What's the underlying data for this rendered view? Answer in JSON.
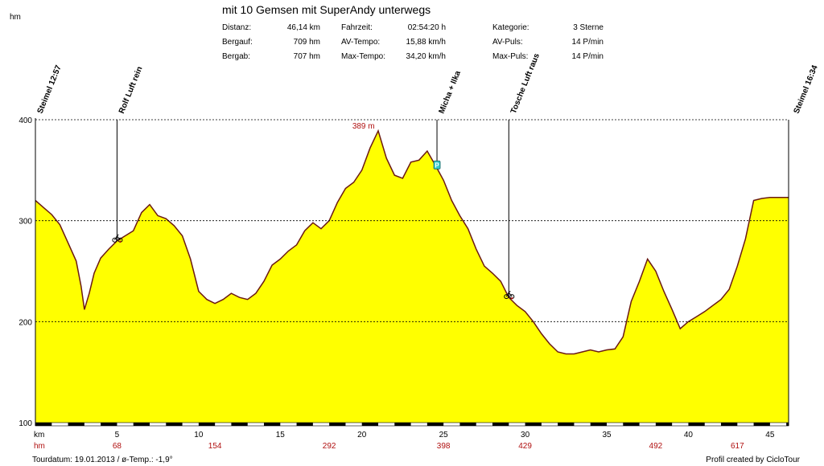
{
  "header": {
    "title": "mit 10 Gemsen mit SuperAndy unterwegs",
    "y_unit": "hm",
    "stats": [
      {
        "label": "Distanz:",
        "value": "46,14 km"
      },
      {
        "label": "Bergauf:",
        "value": "709 hm"
      },
      {
        "label": "Bergab:",
        "value": "707 hm"
      },
      {
        "label": "Fahrzeit:",
        "value": "02:54:20 h"
      },
      {
        "label": "AV-Tempo:",
        "value": "15,88 km/h"
      },
      {
        "label": "Max-Tempo:",
        "value": "34,20 km/h"
      },
      {
        "label": "Kategorie:",
        "value": "3 Sterne"
      },
      {
        "label": "AV-Puls:",
        "value": "14 P/min"
      },
      {
        "label": "Max-Puls:",
        "value": "14 P/min"
      }
    ]
  },
  "footer": {
    "tourdatum": "Tourdatum: 19.01.2013  /  ø-Temp.: -1,9°",
    "credit": "Profil created by CicloTour"
  },
  "colors": {
    "fill": "#ffff00",
    "line": "#6b1a12",
    "accent_red": "#b01010",
    "grid": "#000000",
    "icon_cyan": "#33cccc"
  },
  "chart_data": {
    "type": "area",
    "title": "mit 10 Gemsen mit SuperAndy unterwegs",
    "xlabel": "km",
    "ylabel": "hm",
    "xlim": [
      0,
      46.14
    ],
    "ylim": [
      100,
      400
    ],
    "yticks": [
      100,
      200,
      300,
      400
    ],
    "xticks": [
      5,
      10,
      15,
      20,
      25,
      30,
      35,
      40,
      45
    ],
    "grid": "horizontal dashed",
    "max_annotation": {
      "x": 20.0,
      "y": 389,
      "label": "389 m"
    },
    "cumulative_climb_row": {
      "label": "hm",
      "values": [
        {
          "x": 5,
          "label": "68"
        },
        {
          "x": 11,
          "label": "154"
        },
        {
          "x": 18,
          "label": "292"
        },
        {
          "x": 25,
          "label": "398"
        },
        {
          "x": 30,
          "label": "429"
        },
        {
          "x": 38,
          "label": "492"
        },
        {
          "x": 43,
          "label": "617"
        }
      ]
    },
    "waypoints": [
      {
        "label": "Steimel 12:57",
        "x": 0.0,
        "icon": "none"
      },
      {
        "label": "Rolf Luft rein",
        "x": 5.0,
        "icon": "bike-icon"
      },
      {
        "label": "Micha + Ilka",
        "x": 24.6,
        "icon": "parking-icon"
      },
      {
        "label": "Tosche Luft raus",
        "x": 29.0,
        "icon": "bike-icon"
      },
      {
        "label": "Steimel 16:34",
        "x": 46.14,
        "icon": "none"
      }
    ],
    "series": [
      {
        "x": [
          0,
          0.5,
          1.0,
          1.5,
          2.0,
          2.5,
          2.8,
          3.0,
          3.3,
          3.6,
          4.0,
          4.5,
          5.0,
          5.5,
          6.0,
          6.5,
          7.0,
          7.5,
          8.0,
          8.5,
          9.0,
          9.5,
          10.0,
          10.5,
          11.0,
          11.5,
          12.0,
          12.5,
          13.0,
          13.5,
          14.0,
          14.5,
          15.0,
          15.5,
          16.0,
          16.5,
          17.0,
          17.5,
          18.0,
          18.5,
          19.0,
          19.5,
          20.0,
          20.5,
          21.0,
          21.5,
          22.0,
          22.5,
          23.0,
          23.5,
          24.0,
          24.5,
          25.0,
          25.5,
          26.0,
          26.5,
          27.0,
          27.5,
          28.0,
          28.5,
          29.0,
          29.5,
          30.0,
          30.5,
          31.0,
          31.5,
          32.0,
          32.5,
          33.0,
          33.5,
          34.0,
          34.5,
          35.0,
          35.5,
          36.0,
          36.5,
          37.0,
          37.5,
          38.0,
          38.5,
          39.0,
          39.5,
          40.0,
          40.5,
          41.0,
          41.5,
          42.0,
          42.5,
          43.0,
          43.5,
          44.0,
          44.5,
          45.0,
          45.5,
          46.14
        ],
        "values": [
          320,
          313,
          306,
          296,
          278,
          260,
          235,
          212,
          228,
          248,
          263,
          272,
          280,
          285,
          290,
          308,
          316,
          305,
          302,
          295,
          285,
          262,
          230,
          222,
          218,
          222,
          228,
          224,
          222,
          228,
          240,
          256,
          262,
          270,
          276,
          290,
          298,
          292,
          300,
          318,
          332,
          338,
          350,
          372,
          389,
          362,
          345,
          342,
          358,
          360,
          369,
          355,
          340,
          320,
          305,
          292,
          272,
          255,
          248,
          240,
          224,
          216,
          210,
          200,
          188,
          178,
          170,
          168,
          168,
          170,
          172,
          170,
          172,
          173,
          185,
          220,
          240,
          262,
          250,
          230,
          212,
          193,
          200,
          205,
          210,
          216,
          222,
          232,
          255,
          282,
          320,
          322,
          323,
          323,
          323
        ],
        "values_note_removed": true
      }
    ]
  }
}
